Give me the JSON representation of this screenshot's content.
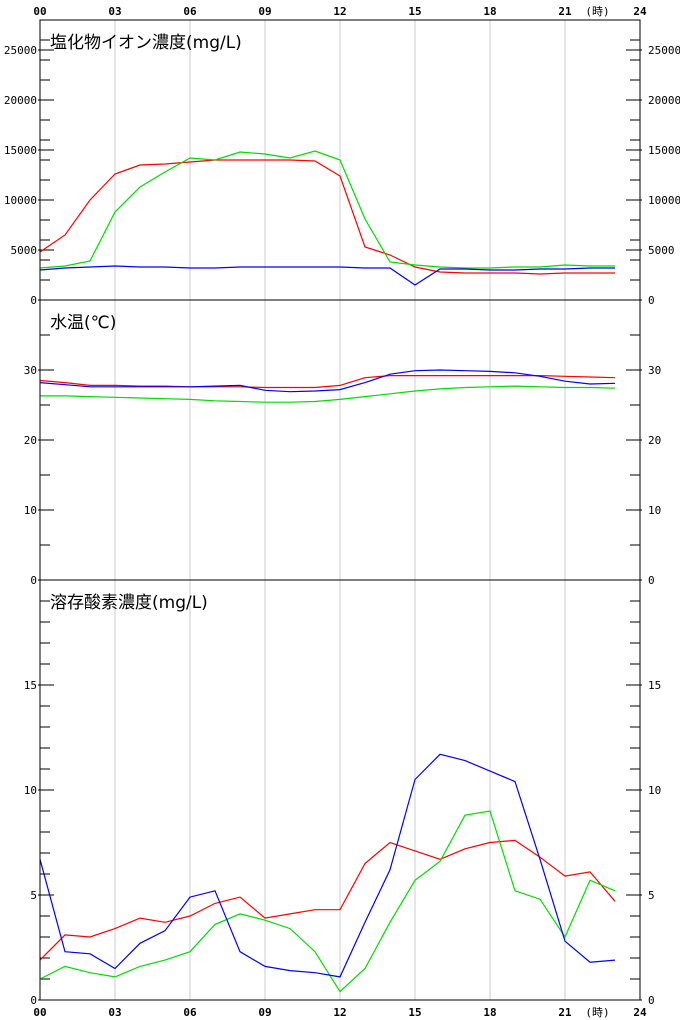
{
  "chart_data": [
    {
      "type": "line",
      "title": "塩化物イオン濃度(mg/L)",
      "x": [
        0,
        1,
        2,
        3,
        4,
        5,
        6,
        7,
        8,
        9,
        10,
        11,
        12,
        13,
        14,
        15,
        16,
        17,
        18,
        19,
        20,
        21,
        22,
        23
      ],
      "ylim": [
        0,
        28000
      ],
      "yticks": [
        0,
        5000,
        10000,
        15000,
        20000,
        25000
      ],
      "series": [
        {
          "color": "#ff0000",
          "values": [
            4800,
            6500,
            10000,
            12600,
            13500,
            13600,
            13800,
            14000,
            14000,
            14000,
            14000,
            13900,
            12400,
            5300,
            4500,
            3300,
            2800,
            2700,
            2700,
            2700,
            2600,
            2700,
            2700,
            2700
          ]
        },
        {
          "color": "#00dd00",
          "values": [
            3200,
            3400,
            3900,
            8800,
            11300,
            12800,
            14200,
            14000,
            14800,
            14600,
            14200,
            14900,
            14000,
            8100,
            3800,
            3500,
            3300,
            3200,
            3200,
            3300,
            3300,
            3500,
            3400,
            3400
          ]
        },
        {
          "color": "#0000ff",
          "values": [
            3000,
            3200,
            3300,
            3400,
            3300,
            3300,
            3200,
            3200,
            3300,
            3300,
            3300,
            3300,
            3300,
            3200,
            3200,
            1500,
            3100,
            3100,
            3000,
            3000,
            3100,
            3100,
            3200,
            3200
          ]
        }
      ]
    },
    {
      "type": "line",
      "title": "水温(℃)",
      "x": [
        0,
        1,
        2,
        3,
        4,
        5,
        6,
        7,
        8,
        9,
        10,
        11,
        12,
        13,
        14,
        15,
        16,
        17,
        18,
        19,
        20,
        21,
        22,
        23
      ],
      "ylim": [
        0,
        40
      ],
      "yticks": [
        0,
        10,
        20,
        30
      ],
      "series": [
        {
          "color": "#ff0000",
          "values": [
            28.5,
            28.2,
            27.8,
            27.8,
            27.7,
            27.7,
            27.6,
            27.6,
            27.6,
            27.5,
            27.5,
            27.5,
            27.8,
            28.9,
            29.2,
            29.2,
            29.2,
            29.2,
            29.2,
            29.2,
            29.2,
            29.1,
            29.0,
            28.9
          ]
        },
        {
          "color": "#00dd00",
          "values": [
            26.3,
            26.3,
            26.2,
            26.1,
            26.0,
            25.9,
            25.8,
            25.6,
            25.5,
            25.4,
            25.4,
            25.5,
            25.8,
            26.2,
            26.6,
            27.0,
            27.3,
            27.5,
            27.6,
            27.7,
            27.6,
            27.5,
            27.5,
            27.4
          ]
        },
        {
          "color": "#0000ff",
          "values": [
            28.2,
            27.9,
            27.6,
            27.6,
            27.6,
            27.6,
            27.6,
            27.7,
            27.8,
            27.1,
            26.9,
            27.0,
            27.2,
            28.2,
            29.4,
            29.9,
            30.0,
            29.9,
            29.8,
            29.6,
            29.1,
            28.4,
            28.0,
            28.1
          ]
        }
      ]
    },
    {
      "type": "line",
      "title": "溶存酸素濃度(mg/L)",
      "x": [
        0,
        1,
        2,
        3,
        4,
        5,
        6,
        7,
        8,
        9,
        10,
        11,
        12,
        13,
        14,
        15,
        16,
        17,
        18,
        19,
        20,
        21,
        22,
        23
      ],
      "ylim": [
        0,
        20
      ],
      "yticks": [
        0,
        5,
        10,
        15
      ],
      "series": [
        {
          "color": "#ff0000",
          "values": [
            1.9,
            3.1,
            3.0,
            3.4,
            3.9,
            3.7,
            4.0,
            4.6,
            4.9,
            3.9,
            4.1,
            4.3,
            4.3,
            6.5,
            7.5,
            7.1,
            6.7,
            7.2,
            7.5,
            7.6,
            6.8,
            5.9,
            6.1,
            4.7
          ]
        },
        {
          "color": "#00dd00",
          "values": [
            1.0,
            1.6,
            1.3,
            1.1,
            1.6,
            1.9,
            2.3,
            3.6,
            4.1,
            3.8,
            3.4,
            2.3,
            0.4,
            1.5,
            3.7,
            5.7,
            6.6,
            8.8,
            9.0,
            5.2,
            4.8,
            3.0,
            5.7,
            5.2
          ]
        },
        {
          "color": "#0000ff",
          "values": [
            6.7,
            2.3,
            2.2,
            1.5,
            2.7,
            3.3,
            4.9,
            5.2,
            2.3,
            1.6,
            1.4,
            1.3,
            1.1,
            3.7,
            6.2,
            10.5,
            11.7,
            11.4,
            10.9,
            10.4,
            6.7,
            2.8,
            1.8,
            1.9
          ]
        }
      ]
    }
  ],
  "x_axis": {
    "tick_labels": [
      "00",
      "03",
      "06",
      "09",
      "12",
      "15",
      "18",
      "21",
      "24"
    ],
    "unit": "(時)"
  },
  "colors": {
    "grid": "#cccccc",
    "frame": "#000000",
    "background": "#ffffff"
  }
}
